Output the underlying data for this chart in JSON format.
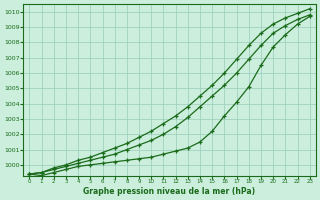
{
  "title": "Graphe pression niveau de la mer (hPa)",
  "bg_color": "#cceedd",
  "grid_color": "#99ccbb",
  "line_color": "#1a6b1a",
  "xlim_min": -0.5,
  "xlim_max": 23.5,
  "ylim_min": 999.3,
  "ylim_max": 1010.5,
  "yticks": [
    1000,
    1001,
    1002,
    1003,
    1004,
    1005,
    1006,
    1007,
    1008,
    1009,
    1010
  ],
  "xticks": [
    0,
    1,
    2,
    3,
    4,
    5,
    6,
    7,
    8,
    9,
    10,
    11,
    12,
    13,
    14,
    15,
    16,
    17,
    18,
    19,
    20,
    21,
    22,
    23
  ],
  "line_smooth1": [
    999.4,
    999.5,
    999.7,
    999.9,
    1000.1,
    1000.3,
    1000.5,
    1000.7,
    1001.0,
    1001.3,
    1001.6,
    1002.0,
    1002.5,
    1003.1,
    1003.8,
    1004.5,
    1005.2,
    1006.0,
    1006.9,
    1007.8,
    1008.6,
    1009.1,
    1009.5,
    1009.8
  ],
  "line_smooth2": [
    999.4,
    999.5,
    999.8,
    1000.0,
    1000.3,
    1000.5,
    1000.8,
    1001.1,
    1001.4,
    1001.8,
    1002.2,
    1002.7,
    1003.2,
    1003.8,
    1004.5,
    1005.2,
    1006.0,
    1006.9,
    1007.8,
    1008.6,
    1009.2,
    1009.6,
    1009.9,
    1010.2
  ],
  "line_dip": [
    999.4,
    999.3,
    999.5,
    999.7,
    999.9,
    1000.0,
    1000.1,
    1000.2,
    1000.3,
    1000.4,
    1000.5,
    1000.7,
    1000.9,
    1001.1,
    1001.5,
    1002.2,
    1003.2,
    1004.1,
    1005.1,
    1006.5,
    1007.7,
    1008.5,
    1009.2,
    1009.7
  ]
}
